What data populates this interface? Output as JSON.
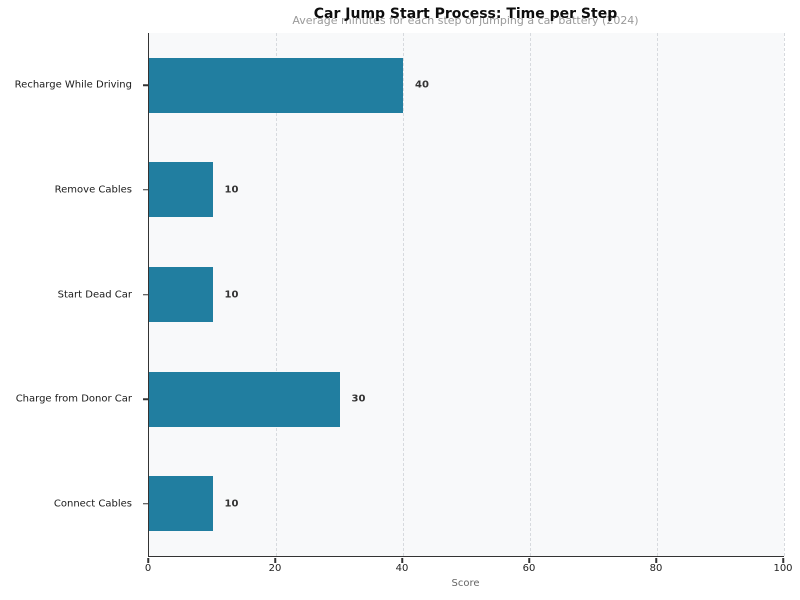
{
  "chart_data": {
    "type": "bar",
    "orientation": "horizontal",
    "title": "Car Jump Start Process: Time per Step",
    "subtitle": "Average minutes for each step of jumping a car battery (2024)",
    "xlabel": "Score",
    "categories_top_to_bottom": [
      "Recharge While Driving",
      "Remove Cables",
      "Start Dead Car",
      "Charge from Donor Car",
      "Connect Cables"
    ],
    "values": [
      40,
      10,
      10,
      30,
      10
    ],
    "value_labels": [
      "40",
      "10",
      "10",
      "30",
      "10"
    ],
    "xlim": [
      0,
      100
    ],
    "x_ticks": [
      0,
      20,
      40,
      60,
      80,
      100
    ],
    "grid": "vertical-dashed",
    "legend": "none",
    "bar_color": "#217ea0",
    "value_label_color": "#333333",
    "plot_background": "#f8f9fa",
    "figure_background": "#ffffff"
  }
}
